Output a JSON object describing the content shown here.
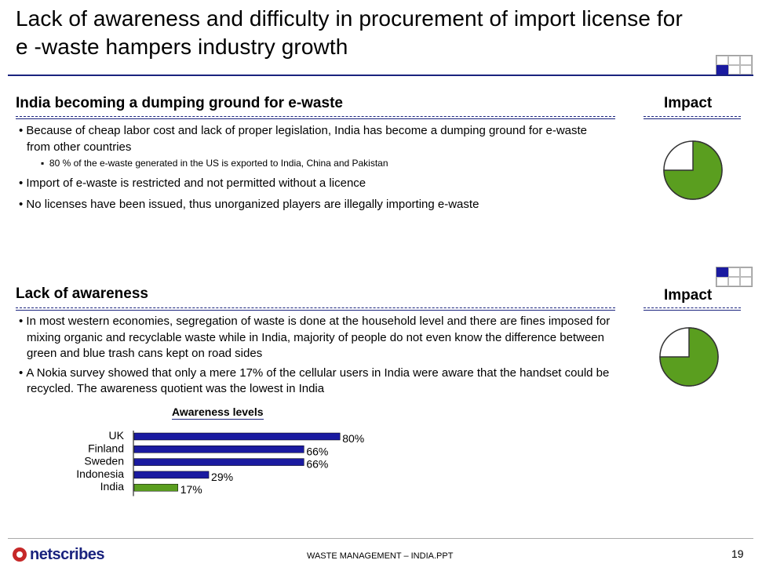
{
  "title": "Lack of awareness and difficulty in procurement of  import license for e -waste hampers industry growth",
  "section1": {
    "heading": "India becoming a dumping ground for e-waste",
    "impact_label": "Impact",
    "impact_fraction": 0.75,
    "bullets": [
      "Because of cheap labor cost and lack of proper legislation, India has become a dumping ground for e-waste from other countries",
      "80 % of the e-waste generated in the US is exported to India, China and Pakistan",
      "Import of e-waste is restricted and not permitted without  a licence",
      "No licenses have been issued, thus unorganized players are illegally importing e-waste"
    ]
  },
  "section2": {
    "heading": "Lack of awareness",
    "impact_label": "Impact",
    "impact_fraction": 0.75,
    "bullets": [
      "In most western economies, segregation of waste is done at the household level and there are fines imposed for mixing organic and recyclable waste while in India, majority of people do not even know the difference between green and blue trash cans kept on road sides",
      "A Nokia survey showed that only a mere 17% of the cellular users in India were aware that the handset could be recycled. The awareness quotient was the lowest in India"
    ]
  },
  "chart_data": {
    "type": "bar",
    "orientation": "horizontal",
    "title": "Awareness levels",
    "categories": [
      "UK",
      "Finland",
      "Sweden",
      "Indonesia",
      "India"
    ],
    "values": [
      80,
      66,
      66,
      29,
      17
    ],
    "value_labels": [
      "80%",
      "66%",
      "66%",
      "29%",
      "17%"
    ],
    "highlight_category": "India",
    "xlim": [
      0,
      100
    ],
    "xlabel": "",
    "ylabel": ""
  },
  "colors": {
    "accent": "#1a237e",
    "bar": "#1a1aa0",
    "bar_highlight": "#5a9e1f",
    "pie_fill": "#5a9e1f"
  },
  "footer": {
    "logo_text": "netscribes",
    "doc_name": "WASTE MANAGEMENT – INDIA.PPT",
    "page_number": "19"
  }
}
